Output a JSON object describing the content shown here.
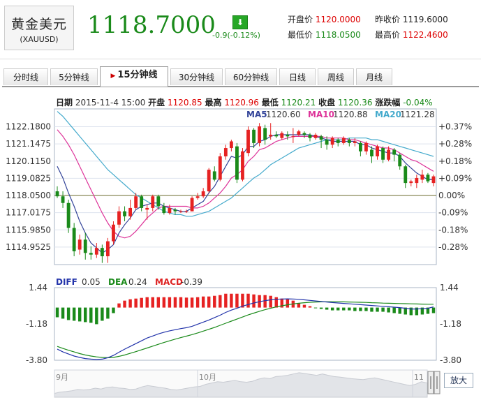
{
  "header": {
    "name": "黄金美元",
    "code": "(XAUUSD)",
    "price": "1118.7000",
    "change": "-0.9(-0.12%)",
    "quotes": [
      {
        "label": "开盘价",
        "value": "1120.0000",
        "color": "#dd0000"
      },
      {
        "label": "昨收价",
        "value": "1119.6000",
        "color": "#333333"
      },
      {
        "label": "最低价",
        "value": "1118.0500",
        "color": "#1a8a1a"
      },
      {
        "label": "最高价",
        "value": "1122.4600",
        "color": "#dd0000"
      }
    ]
  },
  "tabs": [
    "分时线",
    "5分钟线",
    "15分钟线",
    "30分钟线",
    "60分钟线",
    "日线",
    "周线",
    "月线"
  ],
  "active_tab": "15分钟线",
  "info": {
    "date_label": "日期",
    "date": "2015-11-4 15:00",
    "open_label": "开盘",
    "open": "1120.85",
    "high_label": "最高",
    "high": "1120.96",
    "low_label": "最低",
    "low": "1120.21",
    "close_label": "收盘",
    "close": "1120.36",
    "chg_label": "涨跌幅",
    "chg": "-0.04%"
  },
  "ma_legend": [
    {
      "label": "MA5",
      "value": "1120.60",
      "color": "#334499"
    },
    {
      "label": "MA10",
      "value": "1120.88",
      "color": "#dd3399"
    },
    {
      "label": "MA20",
      "value": "1121.28",
      "color": "#44aacc"
    }
  ],
  "macd_legend": [
    {
      "label": "DIFF",
      "value": "0.05",
      "color": "#2233aa"
    },
    {
      "label": "DEA",
      "value": "0.24",
      "color": "#1a8a1a"
    },
    {
      "label": "MACD",
      "value": "-0.39",
      "color": "#dd2222"
    }
  ],
  "zoom_button": "放大",
  "colors": {
    "up": "#e62222",
    "down": "#1a8a1a",
    "grid": "#dde3ee"
  },
  "chart_data": {
    "type": "candlestick",
    "ylim": [
      1113.9,
      1123.25
    ],
    "baseline": 1118.05,
    "y_ticks": [
      "1122.1800",
      "1121.1475",
      "1120.1150",
      "1119.0825",
      "1118.0500",
      "1117.0175",
      "1115.9850",
      "1114.9525"
    ],
    "y_tick_values": [
      1122.18,
      1121.1475,
      1120.115,
      1119.0825,
      1118.05,
      1117.0175,
      1115.985,
      1114.9525
    ],
    "pct_ticks": [
      "+0.37%",
      "+0.28%",
      "+0.18%",
      "+0.09%",
      "0.00%",
      "-0.09%",
      "-0.18%",
      "-0.28%"
    ],
    "candles": [
      [
        1118.3,
        1118.0,
        1118.6,
        1117.9
      ],
      [
        1118.0,
        1117.6,
        1118.3,
        1117.3
      ],
      [
        1117.6,
        1116.1,
        1117.8,
        1115.8
      ],
      [
        1116.1,
        1114.7,
        1116.4,
        1114.4
      ],
      [
        1114.8,
        1115.4,
        1115.7,
        1114.5
      ],
      [
        1115.4,
        1114.6,
        1115.8,
        1114.2
      ],
      [
        1114.6,
        1114.5,
        1115.0,
        1114.2
      ],
      [
        1114.5,
        1114.9,
        1115.2,
        1114.3
      ],
      [
        1114.9,
        1114.4,
        1115.1,
        1114.0
      ],
      [
        1114.4,
        1115.3,
        1115.5,
        1114.0
      ],
      [
        1115.3,
        1116.3,
        1116.5,
        1115.1
      ],
      [
        1116.3,
        1117.1,
        1117.4,
        1116.1
      ],
      [
        1117.1,
        1116.8,
        1117.4,
        1116.5
      ],
      [
        1116.8,
        1117.3,
        1117.8,
        1116.6
      ],
      [
        1117.3,
        1118.0,
        1118.2,
        1117.2
      ],
      [
        1118.0,
        1117.3,
        1118.1,
        1117.1
      ],
      [
        1117.2,
        1117.3,
        1117.5,
        1116.6
      ],
      [
        1117.3,
        1118.0,
        1118.1,
        1117.1
      ],
      [
        1118.0,
        1117.4,
        1118.1,
        1117.2
      ],
      [
        1117.4,
        1117.0,
        1117.6,
        1116.9
      ],
      [
        1117.0,
        1117.3,
        1117.5,
        1116.9
      ],
      [
        1117.2,
        1117.1,
        1117.3,
        1116.9
      ],
      [
        1117.1,
        1117.1,
        1117.2,
        1117.0
      ],
      [
        1117.1,
        1117.1,
        1117.2,
        1117.0
      ],
      [
        1117.1,
        1117.9,
        1118.0,
        1117.1
      ],
      [
        1117.9,
        1118.0,
        1118.2,
        1117.8
      ],
      [
        1118.0,
        1118.3,
        1118.5,
        1117.9
      ],
      [
        1118.3,
        1119.6,
        1119.7,
        1118.2
      ],
      [
        1119.5,
        1119.0,
        1119.8,
        1118.9
      ],
      [
        1119.0,
        1120.4,
        1120.6,
        1118.9
      ],
      [
        1120.4,
        1120.9,
        1121.1,
        1120.2
      ],
      [
        1120.9,
        1121.3,
        1121.4,
        1120.7
      ],
      [
        1121.0,
        1119.0,
        1121.2,
        1118.8
      ],
      [
        1119.0,
        1120.7,
        1120.9,
        1118.9
      ],
      [
        1120.6,
        1122.0,
        1122.2,
        1120.4
      ],
      [
        1122.0,
        1121.2,
        1122.1,
        1120.9
      ],
      [
        1121.2,
        1122.2,
        1122.4,
        1121.0
      ],
      [
        1122.1,
        1121.4,
        1122.3,
        1121.1
      ],
      [
        1121.6,
        1121.7,
        1122.4,
        1121.4
      ],
      [
        1121.7,
        1121.6,
        1121.9,
        1121.5
      ],
      [
        1121.5,
        1121.8,
        1121.9,
        1121.4
      ],
      [
        1121.7,
        1121.6,
        1121.9,
        1121.4
      ],
      [
        1121.6,
        1121.6,
        1122.1,
        1121.2
      ],
      [
        1121.7,
        1121.9,
        1122.0,
        1121.6
      ],
      [
        1121.8,
        1121.7,
        1121.9,
        1121.5
      ],
      [
        1121.7,
        1121.5,
        1121.8,
        1121.3
      ],
      [
        1121.5,
        1121.7,
        1121.8,
        1121.4
      ],
      [
        1121.6,
        1121.4,
        1121.7,
        1120.9
      ],
      [
        1121.4,
        1121.1,
        1121.6,
        1120.8
      ],
      [
        1121.1,
        1121.5,
        1121.6,
        1120.9
      ],
      [
        1121.4,
        1121.2,
        1121.5,
        1121.0
      ],
      [
        1121.2,
        1121.5,
        1121.6,
        1121.1
      ],
      [
        1121.4,
        1121.2,
        1121.5,
        1121.0
      ],
      [
        1121.2,
        1121.3,
        1121.5,
        1121.0
      ],
      [
        1121.2,
        1120.7,
        1121.3,
        1120.4
      ],
      [
        1120.7,
        1121.2,
        1121.3,
        1120.5
      ],
      [
        1120.8,
        1120.4,
        1121.0,
        1120.0
      ],
      [
        1120.4,
        1121.0,
        1121.1,
        1120.2
      ],
      [
        1120.9,
        1120.2,
        1121.0,
        1120.0
      ],
      [
        1120.2,
        1120.8,
        1121.0,
        1120.1
      ],
      [
        1120.8,
        1120.5,
        1120.9,
        1120.1
      ],
      [
        1120.5,
        1119.8,
        1120.6,
        1119.6
      ],
      [
        1119.8,
        1118.8,
        1119.9,
        1118.5
      ],
      [
        1118.8,
        1118.9,
        1119.0,
        1118.6
      ],
      [
        1118.8,
        1119.1,
        1119.3,
        1118.5
      ],
      [
        1119.0,
        1119.3,
        1119.6,
        1118.8
      ],
      [
        1119.3,
        1118.9,
        1119.4,
        1118.8
      ],
      [
        1118.8,
        1119.2,
        1119.3,
        1118.6
      ]
    ],
    "ma5": [
      1119.8,
      1119.1,
      1118.2,
      1117.4,
      1116.5,
      1115.8,
      1115.2,
      1114.9,
      1114.6,
      1114.8,
      1115.1,
      1115.8,
      1116.3,
      1116.7,
      1117.2,
      1117.4,
      1117.5,
      1117.6,
      1117.6,
      1117.4,
      1117.3,
      1117.2,
      1117.1,
      1117.1,
      1117.3,
      1117.5,
      1117.7,
      1118.2,
      1118.6,
      1119.2,
      1119.8,
      1120.4,
      1120.3,
      1120.5,
      1121.0,
      1121.0,
      1121.3,
      1121.4,
      1121.6,
      1121.7,
      1121.7,
      1121.7,
      1121.7,
      1121.7,
      1121.7,
      1121.7,
      1121.6,
      1121.5,
      1121.4,
      1121.3,
      1121.3,
      1121.3,
      1121.3,
      1121.3,
      1121.1,
      1121.1,
      1120.9,
      1120.8,
      1120.7,
      1120.6,
      1120.6,
      1120.4,
      1120.0,
      1119.7,
      1119.4,
      1119.2,
      1119.0,
      1119.0
    ],
    "ma10": [
      1122.0,
      1121.6,
      1121.1,
      1120.5,
      1119.8,
      1119.1,
      1118.4,
      1117.7,
      1117.0,
      1116.4,
      1115.9,
      1115.6,
      1115.5,
      1115.6,
      1115.9,
      1116.3,
      1116.7,
      1117.0,
      1117.3,
      1117.4,
      1117.4,
      1117.4,
      1117.4,
      1117.4,
      1117.3,
      1117.3,
      1117.4,
      1117.6,
      1117.9,
      1118.2,
      1118.6,
      1119.1,
      1119.3,
      1119.6,
      1120.1,
      1120.4,
      1120.8,
      1120.9,
      1121.1,
      1121.3,
      1121.4,
      1121.5,
      1121.6,
      1121.6,
      1121.6,
      1121.6,
      1121.6,
      1121.6,
      1121.5,
      1121.5,
      1121.5,
      1121.5,
      1121.4,
      1121.4,
      1121.3,
      1121.2,
      1121.1,
      1121.0,
      1120.9,
      1120.9,
      1120.8,
      1120.6,
      1120.4,
      1120.2,
      1120.1,
      1119.9,
      1119.7,
      1119.5
    ],
    "ma20": [
      1123.1,
      1122.8,
      1122.4,
      1122.0,
      1121.6,
      1121.2,
      1120.8,
      1120.4,
      1120.0,
      1119.6,
      1119.3,
      1119.0,
      1118.7,
      1118.4,
      1118.1,
      1117.9,
      1117.7,
      1117.5,
      1117.3,
      1117.1,
      1117.0,
      1116.9,
      1116.9,
      1116.8,
      1116.8,
      1116.9,
      1117.0,
      1117.1,
      1117.3,
      1117.5,
      1117.7,
      1117.9,
      1118.2,
      1118.5,
      1118.8,
      1119.1,
      1119.3,
      1119.6,
      1119.9,
      1120.1,
      1120.3,
      1120.5,
      1120.7,
      1120.9,
      1121.0,
      1121.1,
      1121.2,
      1121.3,
      1121.4,
      1121.4,
      1121.4,
      1121.4,
      1121.5,
      1121.5,
      1121.5,
      1121.5,
      1121.4,
      1121.4,
      1121.3,
      1121.2,
      1121.1,
      1121.0,
      1120.9,
      1120.8,
      1120.7,
      1120.6,
      1120.5,
      1120.4
    ],
    "macd": {
      "ylim": [
        -3.8,
        1.44
      ],
      "y_ticks": [
        "1.44",
        "-1.18",
        "-3.80"
      ],
      "y_tick_values": [
        1.44,
        -1.18,
        -3.8
      ],
      "hist": [
        -0.7,
        -0.8,
        -0.9,
        -0.95,
        -1.0,
        -1.05,
        -1.1,
        -1.2,
        -0.95,
        -0.8,
        -0.4,
        0.3,
        0.5,
        0.6,
        0.65,
        0.7,
        0.75,
        0.75,
        0.75,
        0.75,
        0.75,
        0.75,
        0.75,
        0.72,
        0.72,
        0.75,
        0.8,
        0.8,
        0.85,
        0.9,
        1.0,
        1.0,
        1.0,
        1.0,
        1.0,
        0.95,
        0.9,
        0.9,
        0.85,
        0.75,
        0.65,
        0.6,
        0.5,
        0.3,
        0.2,
        0.1,
        -0.05,
        -0.1,
        -0.15,
        -0.2,
        -0.2,
        -0.2,
        -0.2,
        -0.25,
        -0.25,
        -0.25,
        -0.3,
        -0.3,
        -0.3,
        -0.35,
        -0.4,
        -0.45,
        -0.5,
        -0.55,
        -0.55,
        -0.5,
        -0.45,
        -0.4
      ],
      "diff": [
        -3.0,
        -3.2,
        -3.35,
        -3.5,
        -3.6,
        -3.68,
        -3.72,
        -3.75,
        -3.72,
        -3.62,
        -3.45,
        -3.22,
        -3.0,
        -2.8,
        -2.6,
        -2.4,
        -2.2,
        -2.05,
        -1.9,
        -1.78,
        -1.68,
        -1.6,
        -1.52,
        -1.45,
        -1.35,
        -1.2,
        -1.05,
        -0.9,
        -0.72,
        -0.55,
        -0.35,
        -0.18,
        -0.05,
        0.1,
        0.22,
        0.33,
        0.42,
        0.5,
        0.56,
        0.6,
        0.62,
        0.63,
        0.62,
        0.6,
        0.56,
        0.52,
        0.48,
        0.44,
        0.4,
        0.36,
        0.33,
        0.3,
        0.27,
        0.24,
        0.21,
        0.18,
        0.15,
        0.12,
        0.09,
        0.06,
        0.03,
        0.0,
        -0.05,
        -0.1,
        -0.1,
        -0.08,
        -0.05,
        0.05
      ],
      "dea": [
        -2.8,
        -2.95,
        -3.08,
        -3.2,
        -3.32,
        -3.42,
        -3.5,
        -3.56,
        -3.6,
        -3.62,
        -3.6,
        -3.52,
        -3.42,
        -3.3,
        -3.18,
        -3.05,
        -2.92,
        -2.78,
        -2.65,
        -2.52,
        -2.4,
        -2.28,
        -2.17,
        -2.06,
        -1.95,
        -1.83,
        -1.7,
        -1.57,
        -1.43,
        -1.28,
        -1.13,
        -0.98,
        -0.83,
        -0.68,
        -0.53,
        -0.4,
        -0.27,
        -0.15,
        -0.05,
        0.05,
        0.13,
        0.2,
        0.26,
        0.31,
        0.35,
        0.38,
        0.4,
        0.41,
        0.42,
        0.42,
        0.42,
        0.41,
        0.4,
        0.39,
        0.38,
        0.37,
        0.35,
        0.34,
        0.32,
        0.31,
        0.3,
        0.29,
        0.28,
        0.27,
        0.26,
        0.25,
        0.24,
        0.24
      ]
    },
    "nav_labels": [
      "9月",
      "10月",
      "11"
    ],
    "nav_profile": [
      0.15,
      0.2,
      0.22,
      0.25,
      0.3,
      0.28,
      0.3,
      0.35,
      0.32,
      0.38,
      0.4,
      0.36,
      0.34,
      0.3,
      0.32,
      0.4,
      0.45,
      0.42,
      0.38,
      0.35,
      0.3,
      0.28,
      0.32,
      0.36,
      0.4,
      0.42,
      0.5,
      0.55,
      0.6,
      0.58,
      0.62,
      0.65,
      0.6,
      0.58,
      0.62,
      0.7,
      0.75,
      0.72,
      0.8,
      0.82,
      0.85,
      0.9,
      0.95,
      0.92,
      0.88,
      0.85,
      0.9,
      0.85,
      0.8,
      0.78,
      0.75,
      0.72,
      0.7,
      0.68,
      0.72,
      0.75,
      0.7,
      0.65,
      0.6,
      0.55,
      0.5,
      0.45,
      0.5,
      0.6,
      0.55
    ]
  }
}
